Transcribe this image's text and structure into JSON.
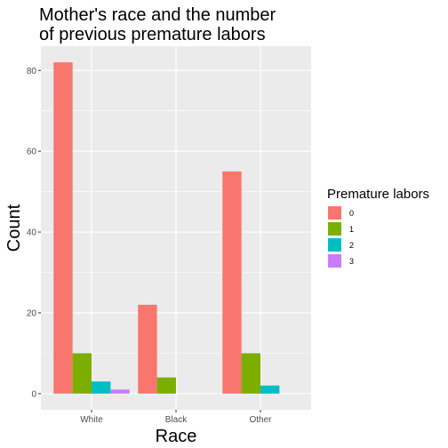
{
  "chart_data": {
    "type": "bar",
    "title": "Mother's race and the number\nof previous premature labors",
    "xlabel": "Race",
    "ylabel": "Count",
    "categories": [
      "White",
      "Black",
      "Other"
    ],
    "series": [
      {
        "name": "0",
        "color": "#F8766D",
        "values": [
          82,
          22,
          55
        ]
      },
      {
        "name": "1",
        "color": "#7CAE00",
        "values": [
          10,
          4,
          10
        ]
      },
      {
        "name": "2",
        "color": "#00BFC4",
        "values": [
          3,
          null,
          2
        ]
      },
      {
        "name": "3",
        "color": "#C77CFF",
        "values": [
          1,
          null,
          null
        ]
      }
    ],
    "ylim": [
      -4,
      86
    ],
    "yticks": [
      0,
      20,
      40,
      60,
      80
    ],
    "grid": true,
    "panel_background": "#EBEBEB",
    "legend": {
      "title": "Premature labors",
      "position": "right"
    }
  }
}
